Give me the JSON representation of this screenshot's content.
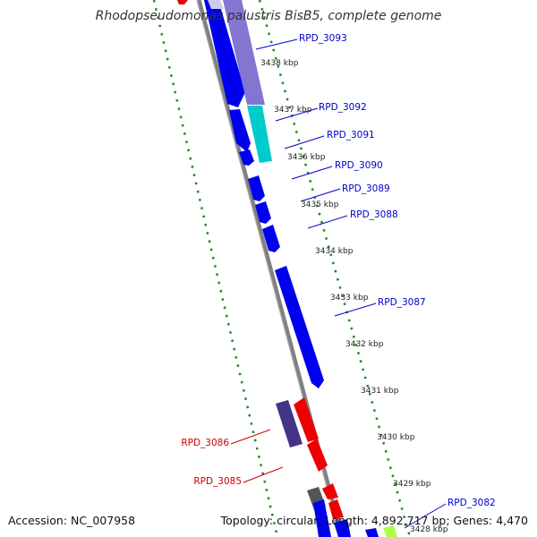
{
  "title": "Rhodopseudomonas palustris BisB5, complete genome",
  "footer": {
    "accession": "Accession: NC_007958",
    "summary": "Topology: circular; Length: 4,892,717 bp; Genes: 4,470"
  },
  "kbp_labels": [
    "3438 kbp",
    "3437 kbp",
    "3436 kbp",
    "3435 kbp",
    "3434 kbp",
    "3433 kbp",
    "3432 kbp",
    "3431 kbp",
    "3430 kbp",
    "3429 kbp",
    "3428 kbp"
  ],
  "gene_labels": {
    "rpd3093": "RPD_3093",
    "rpd3092": "RPD_3092",
    "rpd3091": "RPD_3091",
    "rpd3090": "RPD_3090",
    "rpd3089": "RPD_3089",
    "rpd3088": "RPD_3088",
    "rpd3087": "RPD_3087",
    "rpd3086": "RPD_3086",
    "rpd3085": "RPD_3085",
    "rpd3082": "RPD_3082"
  },
  "colors": {
    "forward_strand_label": "#0000cc",
    "reverse_strand_label": "#cc0000",
    "gene_blue": "#0000ee",
    "gene_red": "#ee0000",
    "gene_cyan": "#00cccc",
    "gene_lavender": "#7766cc",
    "gene_slate": "#443388",
    "gene_gray": "#555555",
    "backbone": "#808080",
    "ruler_dots": "#228822"
  }
}
